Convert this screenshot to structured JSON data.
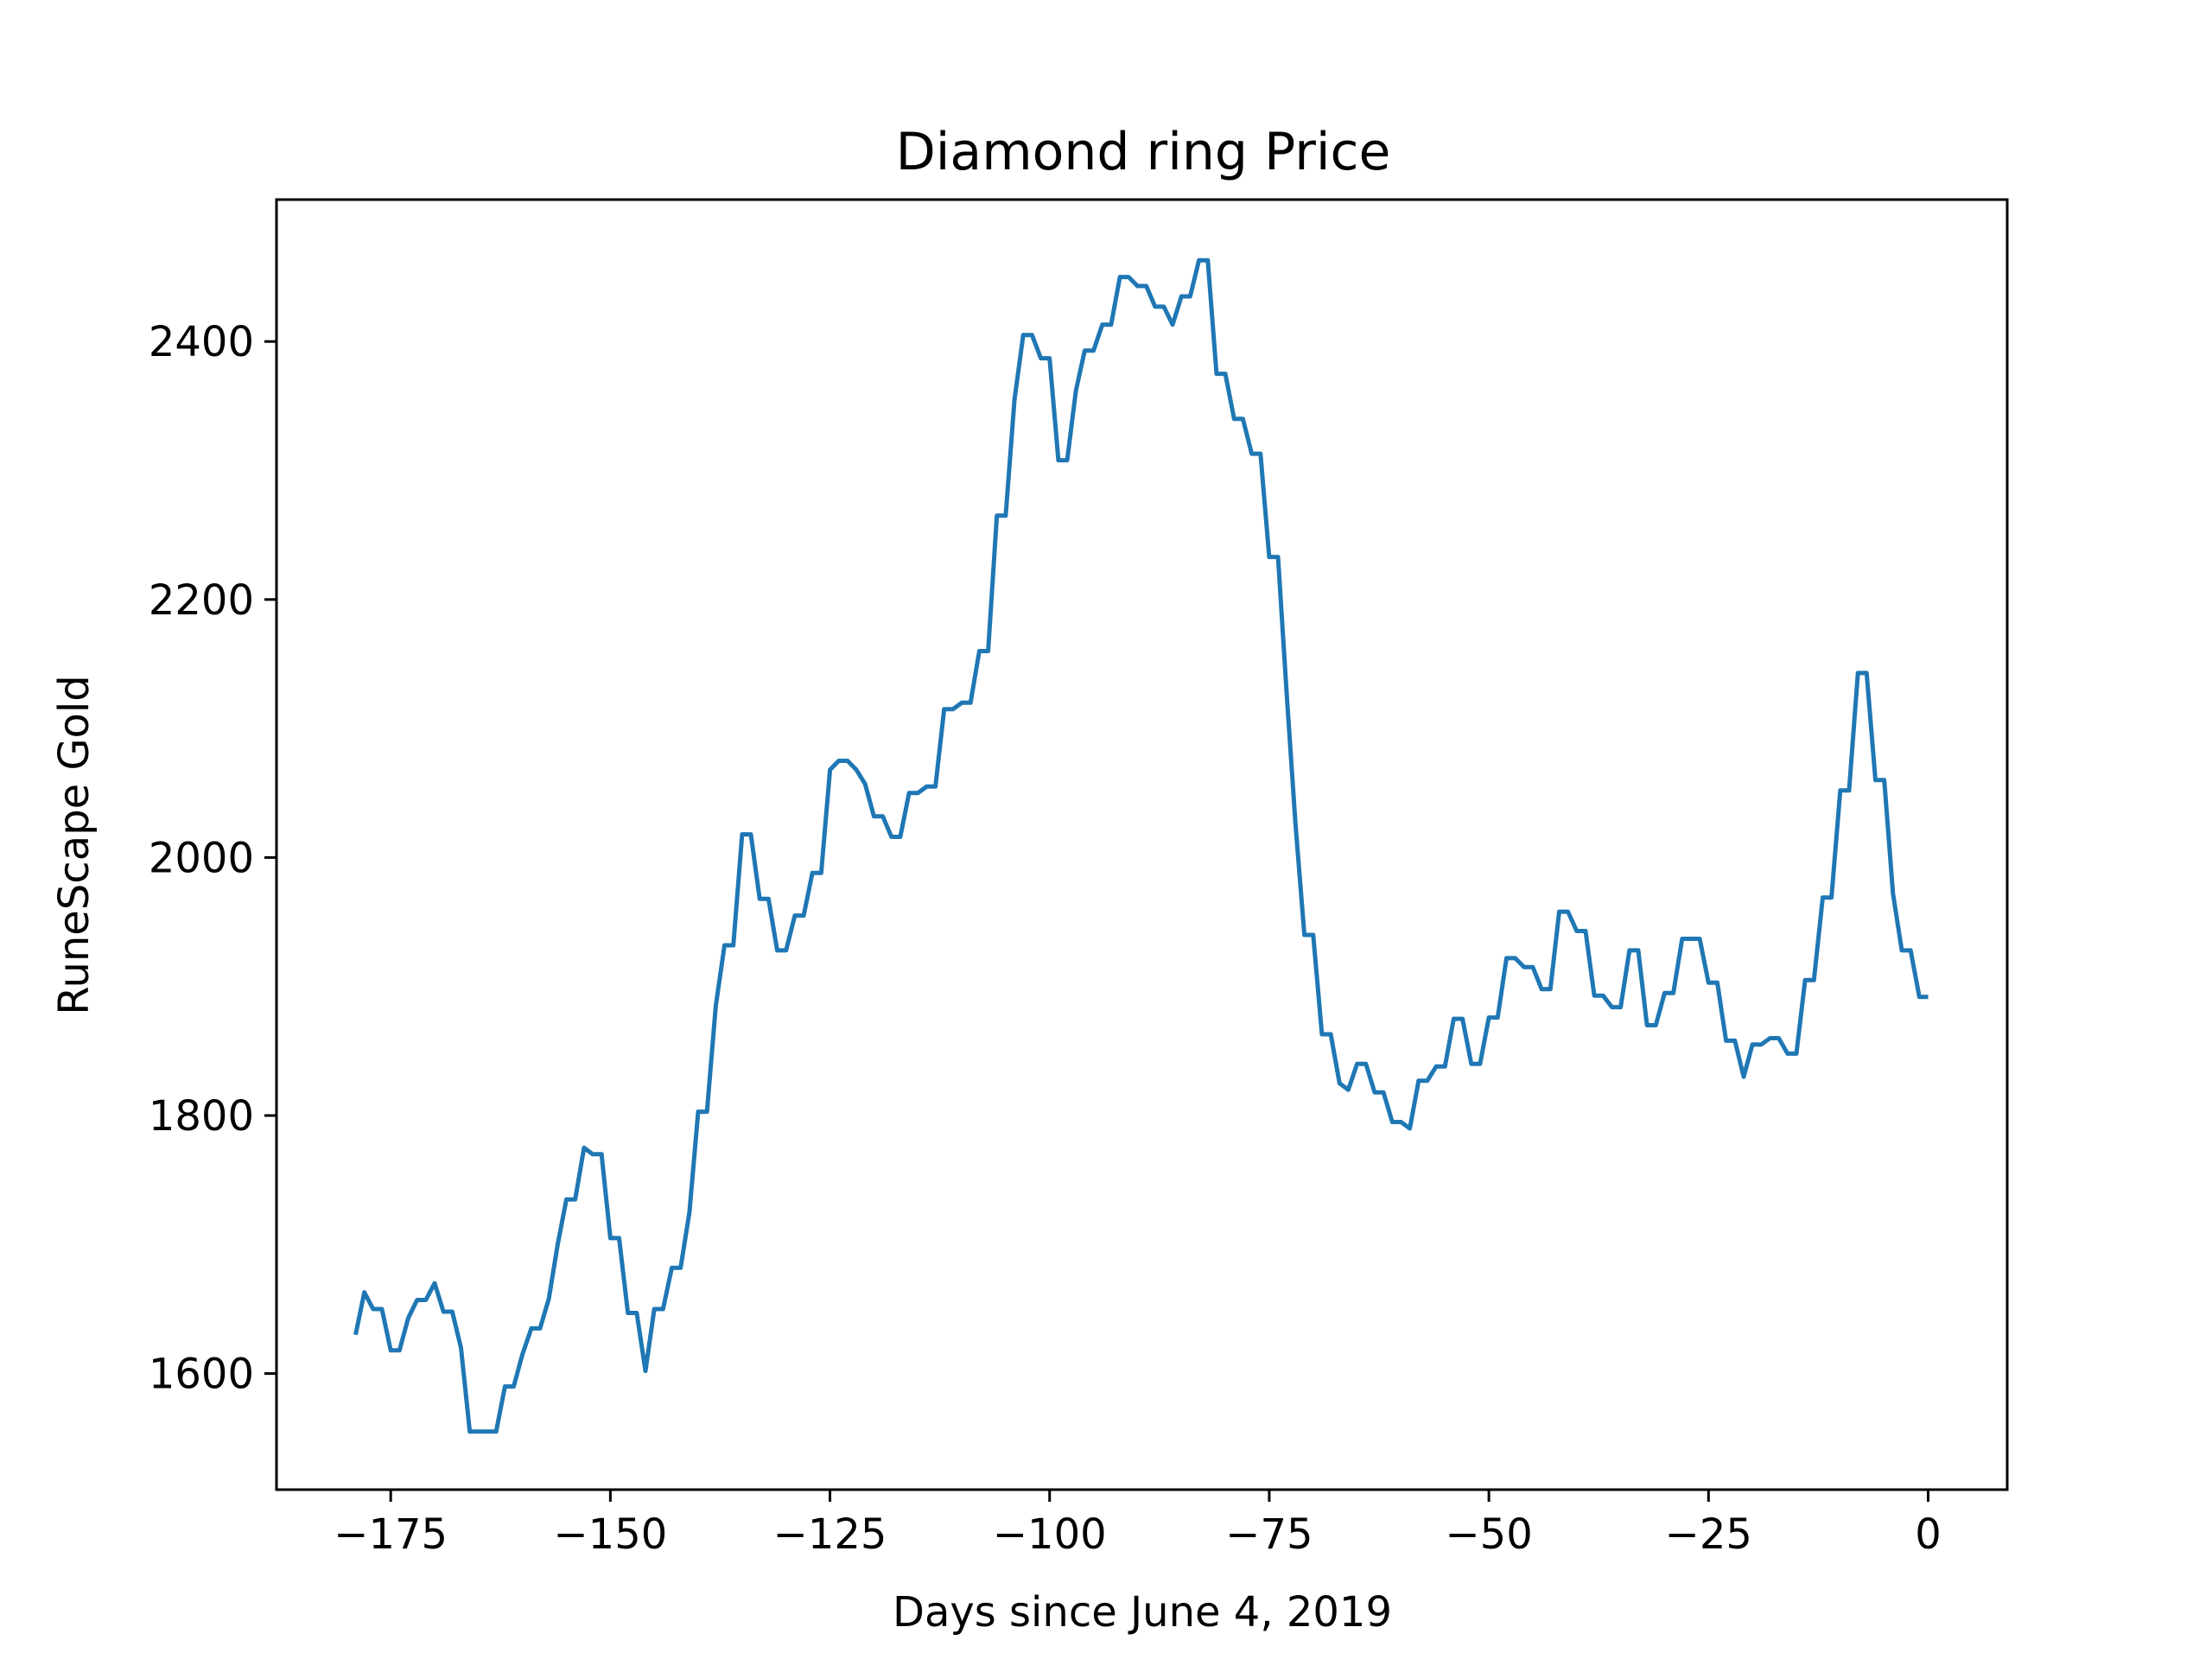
{
  "chart_data": {
    "type": "line",
    "title": "Diamond ring Price",
    "xlabel": "Days since June 4, 2019",
    "ylabel": "RuneScape Gold",
    "xlim": [
      -188,
      9
    ],
    "ylim": [
      1510,
      2510
    ],
    "xticks": [
      -175,
      -150,
      -125,
      -100,
      -75,
      -50,
      -25,
      0
    ],
    "xtick_labels": [
      "−175",
      "−150",
      "−125",
      "−100",
      "−75",
      "−50",
      "−25",
      "0"
    ],
    "yticks": [
      1600,
      1800,
      2000,
      2200,
      2400
    ],
    "ytick_labels": [
      "1600",
      "1800",
      "2000",
      "2200",
      "2400"
    ],
    "grid": false,
    "legend": "none",
    "colors": {
      "series": "#1f77b4"
    },
    "series": [
      {
        "x": [
          -179,
          -178,
          -177,
          -176,
          -175,
          -174,
          -173,
          -172,
          -171,
          -170,
          -169,
          -168,
          -167,
          -166,
          -165,
          -164,
          -163,
          -162,
          -161,
          -160,
          -159,
          -158,
          -157,
          -156,
          -155,
          -154,
          -153,
          -152,
          -151,
          -150,
          -149,
          -148,
          -147,
          -146,
          -145,
          -144,
          -143,
          -142,
          -141,
          -140,
          -139,
          -138,
          -137,
          -136,
          -135,
          -134,
          -133,
          -132,
          -131,
          -130,
          -129,
          -128,
          -127,
          -126,
          -125,
          -124,
          -123,
          -122,
          -121,
          -120,
          -119,
          -118,
          -117,
          -116,
          -115,
          -114,
          -113,
          -112,
          -111,
          -110,
          -109,
          -108,
          -107,
          -106,
          -105,
          -104,
          -103,
          -102,
          -101,
          -100,
          -99,
          -98,
          -97,
          -96,
          -95,
          -94,
          -93,
          -92,
          -91,
          -90,
          -89,
          -88,
          -87,
          -86,
          -85,
          -84,
          -83,
          -82,
          -81,
          -80,
          -79,
          -78,
          -77,
          -76,
          -75,
          -74,
          -73,
          -72,
          -71,
          -70,
          -69,
          -68,
          -67,
          -66,
          -65,
          -64,
          -63,
          -62,
          -61,
          -60,
          -59,
          -58,
          -57,
          -56,
          -55,
          -54,
          -53,
          -52,
          -51,
          -50,
          -49,
          -48,
          -47,
          -46,
          -45,
          -44,
          -43,
          -42,
          -41,
          -40,
          -39,
          -38,
          -37,
          -36,
          -35,
          -34,
          -33,
          -32,
          -31,
          -30,
          -29,
          -28,
          -27,
          -26,
          -25,
          -24,
          -23,
          -22,
          -21,
          -20,
          -19,
          -18,
          -17,
          -16,
          -15,
          -14,
          -13,
          -12,
          -11,
          -10,
          -9,
          -8,
          -7,
          -6,
          -5,
          -4,
          -3,
          -2,
          -1,
          0
        ],
        "values": [
          1630,
          1663,
          1650,
          1650,
          1618,
          1618,
          1643,
          1657,
          1657,
          1670,
          1648,
          1648,
          1620,
          1555,
          1555,
          1555,
          1555,
          1590,
          1590,
          1615,
          1635,
          1635,
          1658,
          1700,
          1735,
          1735,
          1775,
          1770,
          1770,
          1705,
          1705,
          1647,
          1647,
          1602,
          1650,
          1650,
          1682,
          1682,
          1725,
          1803,
          1803,
          1885,
          1932,
          1932,
          2018,
          2018,
          1968,
          1968,
          1928,
          1928,
          1955,
          1955,
          1988,
          1988,
          2068,
          2075,
          2075,
          2068,
          2057,
          2032,
          2032,
          2016,
          2016,
          2050,
          2050,
          2055,
          2055,
          2115,
          2115,
          2120,
          2120,
          2160,
          2160,
          2265,
          2265,
          2355,
          2405,
          2405,
          2387,
          2387,
          2308,
          2308,
          2362,
          2393,
          2393,
          2413,
          2413,
          2450,
          2450,
          2443,
          2443,
          2427,
          2427,
          2413,
          2435,
          2435,
          2463,
          2463,
          2375,
          2375,
          2340,
          2340,
          2313,
          2313,
          2233,
          2233,
          2125,
          2025,
          1940,
          1940,
          1863,
          1863,
          1825,
          1820,
          1840,
          1840,
          1818,
          1818,
          1795,
          1795,
          1790,
          1827,
          1827,
          1838,
          1838,
          1875,
          1875,
          1840,
          1840,
          1876,
          1876,
          1922,
          1922,
          1915,
          1915,
          1898,
          1898,
          1958,
          1958,
          1943,
          1943,
          1893,
          1893,
          1884,
          1884,
          1928,
          1928,
          1870,
          1870,
          1895,
          1895,
          1937,
          1937,
          1937,
          1903,
          1903,
          1858,
          1858,
          1830,
          1855,
          1855,
          1860,
          1860,
          1848,
          1848,
          1905,
          1905,
          1969,
          1969,
          2052,
          2052,
          2143,
          2143,
          2060,
          2060,
          1972,
          1928,
          1928,
          1892,
          1892
        ]
      }
    ]
  }
}
